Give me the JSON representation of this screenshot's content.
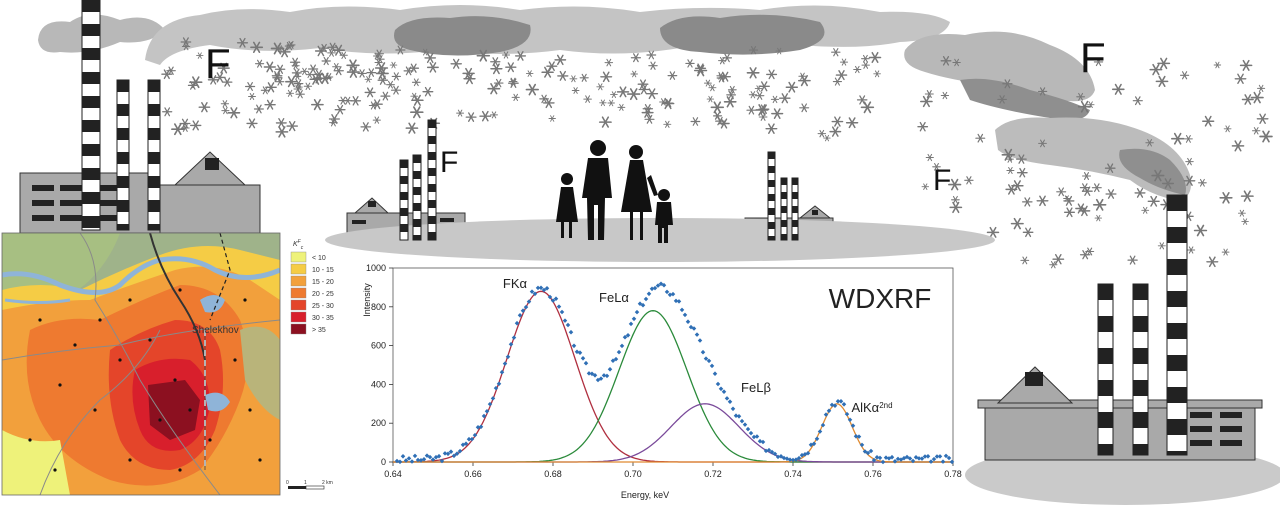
{
  "fluorine_labels": [
    "F",
    "F",
    "F",
    "F"
  ],
  "map": {
    "town_label": "Shelekhov",
    "legend_header": "K",
    "legend_header_sup": "F",
    "legend_header_sub": "c",
    "legend": [
      {
        "label": "< 10",
        "color": "#eef27a"
      },
      {
        "label": "10 - 15",
        "color": "#f5cc45"
      },
      {
        "label": "15 - 20",
        "color": "#f2a03c"
      },
      {
        "label": "20 - 25",
        "color": "#ee7a30"
      },
      {
        "label": "25 - 30",
        "color": "#e4452a"
      },
      {
        "label": "30 - 35",
        "color": "#d81f2c"
      },
      {
        "label": "> 35",
        "color": "#8c1020"
      }
    ],
    "scale_labels": [
      "0",
      "1",
      "2 km"
    ]
  },
  "chart_data": {
    "type": "line",
    "title": "WDXRF",
    "xlabel": "Energy, keV",
    "ylabel": "Intensity",
    "xlim": [
      0.64,
      0.78
    ],
    "ylim": [
      0,
      1000
    ],
    "x_ticks": [
      "0.64",
      "0.66",
      "0.68",
      "0.70",
      "0.72",
      "0.74",
      "0.76",
      "0.78"
    ],
    "y_ticks": [
      "0",
      "200",
      "400",
      "600",
      "800",
      "1000"
    ],
    "peaks": [
      {
        "label": "FKα",
        "label_sup": "",
        "center": 0.677,
        "height": 880,
        "sigma": 0.0085,
        "color": "#b03040"
      },
      {
        "label": "FeLα",
        "label_sup": "",
        "center": 0.705,
        "height": 780,
        "sigma": 0.0085,
        "color": "#2a8a3a"
      },
      {
        "label": "FeLβ",
        "label_sup": "",
        "center": 0.718,
        "height": 300,
        "sigma": 0.0085,
        "color": "#7a4a9a"
      },
      {
        "label": "AlKα",
        "label_sup": "2nd",
        "center": 0.751,
        "height": 300,
        "sigma": 0.0038,
        "color": "#e08a30"
      }
    ],
    "measured_color": "#2f6fb5"
  }
}
